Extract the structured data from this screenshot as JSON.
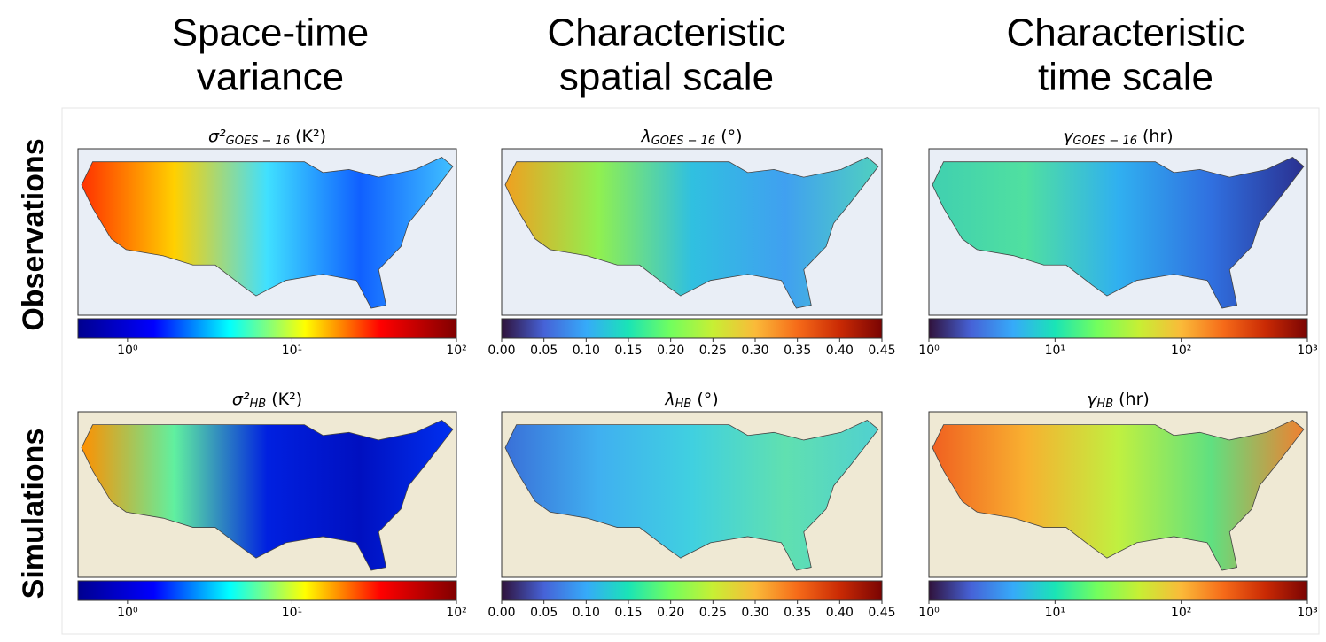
{
  "columns": [
    [
      "Space-time",
      "variance"
    ],
    [
      "Characteristic",
      "spatial scale"
    ],
    [
      "Characteristic",
      "time scale"
    ]
  ],
  "rows": [
    "Observations",
    "Simulations"
  ],
  "panels": [
    {
      "title": {
        "base": "σ²",
        "sub": "GOES − 16",
        "rest": "(K²)"
      },
      "background": "#e9eef6",
      "map_colors": [
        "#ff3000",
        "#ffd000",
        "#40e0ff",
        "#1060ff",
        "#40c0ff"
      ],
      "colorbar": {
        "scale": "log",
        "lim": [
          0.5,
          100
        ],
        "ticks": [
          {
            "value": 1,
            "label": "10⁰"
          },
          {
            "value": 10,
            "label": "10¹"
          },
          {
            "value": 100,
            "label": "10²"
          }
        ],
        "colors": [
          "#00008f",
          "#0000ff",
          "#00ffff",
          "#ffff00",
          "#ff0000",
          "#800000"
        ]
      }
    },
    {
      "title": {
        "base": "λ",
        "sub": "GOES − 16",
        "rest": "(°)"
      },
      "background": "#e9eef6",
      "map_colors": [
        "#f0a020",
        "#90f050",
        "#30c0e0",
        "#40a0f0",
        "#50d0c0"
      ],
      "colorbar": {
        "scale": "linear",
        "lim": [
          0,
          0.45
        ],
        "ticks": [
          {
            "value": 0,
            "label": "0.00"
          },
          0.05,
          {
            "value": 0.1,
            "label": "0.10"
          },
          0.15,
          {
            "value": 0.2,
            "label": "0.20"
          },
          0.25,
          {
            "value": 0.3,
            "label": "0.30"
          },
          0.35,
          {
            "value": 0.4,
            "label": "0.40"
          },
          0.45
        ],
        "colors": [
          "#30123b",
          "#4662d7",
          "#36aaf9",
          "#1ae4b6",
          "#72fe5e",
          "#c7ef34",
          "#faba39",
          "#f66b19",
          "#ca2a04",
          "#7a0403"
        ]
      }
    },
    {
      "title": {
        "base": "γ",
        "sub": "GOES − 16",
        "rest": "(hr)"
      },
      "background": "#e9eef6",
      "map_colors": [
        "#40d0b0",
        "#50e0a0",
        "#30b0f0",
        "#3070e0",
        "#2a3090"
      ],
      "colorbar": {
        "scale": "log",
        "lim": [
          1,
          1000
        ],
        "ticks": [
          {
            "value": 1,
            "label": "10⁰"
          },
          {
            "value": 10,
            "label": "10¹"
          },
          {
            "value": 100,
            "label": "10²"
          },
          {
            "value": 1000,
            "label": "10³"
          }
        ],
        "colors": [
          "#30123b",
          "#4662d7",
          "#36aaf9",
          "#1ae4b6",
          "#72fe5e",
          "#c7ef34",
          "#faba39",
          "#f66b19",
          "#ca2a04",
          "#7a0403"
        ]
      }
    },
    {
      "title": {
        "base": "σ²",
        "sub": "HB",
        "rest": "(K²)"
      },
      "background": "#efe9d4",
      "map_colors": [
        "#ff9000",
        "#60f0a0",
        "#0020e0",
        "#0010c0",
        "#0030f0"
      ],
      "colorbar": {
        "scale": "log",
        "lim": [
          0.5,
          100
        ],
        "ticks": [
          {
            "value": 1,
            "label": "10⁰"
          },
          {
            "value": 10,
            "label": "10¹"
          },
          {
            "value": 100,
            "label": "10²"
          }
        ],
        "colors": [
          "#00008f",
          "#0000ff",
          "#00ffff",
          "#ffff00",
          "#ff0000",
          "#800000"
        ]
      }
    },
    {
      "title": {
        "base": "λ",
        "sub": "HB",
        "rest": "(°)"
      },
      "background": "#efe9d4",
      "map_colors": [
        "#3a70d8",
        "#40b0f0",
        "#40d0e0",
        "#60e0b0",
        "#50d0d0"
      ],
      "colorbar": {
        "scale": "linear",
        "lim": [
          0,
          0.45
        ],
        "ticks": [
          {
            "value": 0,
            "label": "0.00"
          },
          0.05,
          {
            "value": 0.1,
            "label": "0.10"
          },
          0.15,
          {
            "value": 0.2,
            "label": "0.20"
          },
          0.25,
          {
            "value": 0.3,
            "label": "0.30"
          },
          0.35,
          {
            "value": 0.4,
            "label": "0.40"
          },
          0.45
        ],
        "colors": [
          "#30123b",
          "#4662d7",
          "#36aaf9",
          "#1ae4b6",
          "#72fe5e",
          "#c7ef34",
          "#faba39",
          "#f66b19",
          "#ca2a04",
          "#7a0403"
        ]
      }
    },
    {
      "title": {
        "base": "γ",
        "sub": "HB",
        "rest": "(hr)"
      },
      "background": "#efe9d4",
      "map_colors": [
        "#f06020",
        "#f8b030",
        "#c0f040",
        "#60e080",
        "#f08030"
      ],
      "colorbar": {
        "scale": "log",
        "lim": [
          1,
          1000
        ],
        "ticks": [
          {
            "value": 1,
            "label": "10⁰"
          },
          {
            "value": 10,
            "label": "10¹"
          },
          {
            "value": 100,
            "label": "10²"
          },
          {
            "value": 1000,
            "label": "10³"
          }
        ],
        "colors": [
          "#30123b",
          "#4662d7",
          "#36aaf9",
          "#1ae4b6",
          "#72fe5e",
          "#c7ef34",
          "#faba39",
          "#f66b19",
          "#ca2a04",
          "#7a0403"
        ]
      }
    }
  ]
}
